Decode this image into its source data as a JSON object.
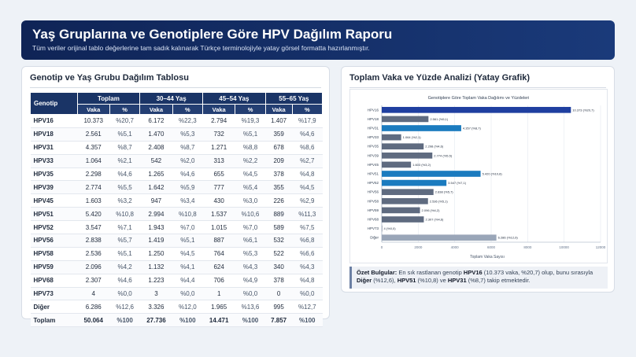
{
  "header": {
    "title": "Yaş Gruplarına ve Genotiplere Göre HPV Dağılım Raporu",
    "subtitle": "Tüm veriler orijinal tablo değerlerine tam sadık kalınarak Türkçe terminolojiyle yatay görsel formatta hazırlanmıştır."
  },
  "table_panel": {
    "title": "Genotip ve Yaş Grubu Dağılım Tablosu",
    "corner_label": "Genotip",
    "groups": [
      "Toplam",
      "30–44 Yaş",
      "45–54 Yaş",
      "55–65 Yaş"
    ],
    "sub_vaka": "Vaka",
    "sub_pct": "%",
    "rows": [
      {
        "g": "HPV16",
        "c": [
          "10.373",
          "%20,7",
          "6.172",
          "%22,3",
          "2.794",
          "%19,3",
          "1.407",
          "%17,9"
        ]
      },
      {
        "g": "HPV18",
        "c": [
          "2.561",
          "%5,1",
          "1.470",
          "%5,3",
          "732",
          "%5,1",
          "359",
          "%4,6"
        ]
      },
      {
        "g": "HPV31",
        "c": [
          "4.357",
          "%8,7",
          "2.408",
          "%8,7",
          "1.271",
          "%8,8",
          "678",
          "%8,6"
        ]
      },
      {
        "g": "HPV33",
        "c": [
          "1.064",
          "%2,1",
          "542",
          "%2,0",
          "313",
          "%2,2",
          "209",
          "%2,7"
        ]
      },
      {
        "g": "HPV35",
        "c": [
          "2.298",
          "%4,6",
          "1.265",
          "%4,6",
          "655",
          "%4,5",
          "378",
          "%4,8"
        ]
      },
      {
        "g": "HPV39",
        "c": [
          "2.774",
          "%5,5",
          "1.642",
          "%5,9",
          "777",
          "%5,4",
          "355",
          "%4,5"
        ]
      },
      {
        "g": "HPV45",
        "c": [
          "1.603",
          "%3,2",
          "947",
          "%3,4",
          "430",
          "%3,0",
          "226",
          "%2,9"
        ]
      },
      {
        "g": "HPV51",
        "c": [
          "5.420",
          "%10,8",
          "2.994",
          "%10,8",
          "1.537",
          "%10,6",
          "889",
          "%11,3"
        ]
      },
      {
        "g": "HPV52",
        "c": [
          "3.547",
          "%7,1",
          "1.943",
          "%7,0",
          "1.015",
          "%7,0",
          "589",
          "%7,5"
        ]
      },
      {
        "g": "HPV56",
        "c": [
          "2.838",
          "%5,7",
          "1.419",
          "%5,1",
          "887",
          "%6,1",
          "532",
          "%6,8"
        ]
      },
      {
        "g": "HPV58",
        "c": [
          "2.536",
          "%5,1",
          "1.250",
          "%4,5",
          "764",
          "%5,3",
          "522",
          "%6,6"
        ]
      },
      {
        "g": "HPV59",
        "c": [
          "2.096",
          "%4,2",
          "1.132",
          "%4,1",
          "624",
          "%4,3",
          "340",
          "%4,3"
        ]
      },
      {
        "g": "HPV68",
        "c": [
          "2.307",
          "%4,6",
          "1.223",
          "%4,4",
          "706",
          "%4,9",
          "378",
          "%4,8"
        ]
      },
      {
        "g": "HPV73",
        "c": [
          "4",
          "%0,0",
          "3",
          "%0,0",
          "1",
          "%0,0",
          "0",
          "%0,0"
        ]
      },
      {
        "g": "Diğer",
        "c": [
          "6.286",
          "%12,6",
          "3.326",
          "%12,0",
          "1.965",
          "%13,6",
          "995",
          "%12,7"
        ]
      }
    ],
    "total": {
      "g": "Toplam",
      "c": [
        "50.064",
        "%100",
        "27.736",
        "%100",
        "14.471",
        "%100",
        "7.857",
        "%100"
      ]
    }
  },
  "chart_panel": {
    "title": "Toplam Vaka ve Yüzde Analizi (Yatay Grafik)",
    "summary": {
      "lead": "Özet Bulgular:",
      "t1": " En sık rastlanan genotip ",
      "b1": "HPV16",
      "t2": " (10.373 vaka, %20,7) olup, bunu sırasıyla ",
      "b2": "Diğer",
      "t3": " (%12,6), ",
      "b3": "HPV51",
      "t4": " (%10,8) ve ",
      "b4": "HPV31",
      "t5": " (%8,7) takip etmektedir."
    }
  },
  "chart_data": {
    "type": "bar",
    "orientation": "horizontal",
    "title": "Genotiplere Göre Toplam Vaka Dağılımı ve Yüzdeleri",
    "xlabel": "Toplam Vaka Sayısı",
    "ylabel": "",
    "xlim": [
      0,
      12000
    ],
    "xticks": [
      0,
      2000,
      4000,
      6000,
      8000,
      10000,
      12000
    ],
    "grid": true,
    "categories": [
      "HPV16",
      "HPV18",
      "HPV31",
      "HPV33",
      "HPV35",
      "HPV39",
      "HPV45",
      "HPV51",
      "HPV52",
      "HPV56",
      "HPV58",
      "HPV59",
      "HPV68",
      "HPV73",
      "Diğer"
    ],
    "values": [
      10373,
      2561,
      4357,
      1064,
      2298,
      2774,
      1603,
      5420,
      3547,
      2838,
      2536,
      2096,
      2307,
      4,
      6286
    ],
    "labels": [
      "10.373 (%20,7)",
      "2.561 (%5,1)",
      "4.357 (%8,7)",
      "1.064 (%2,1)",
      "2.298 (%4,6)",
      "2.774 (%5,5)",
      "1.603 (%3,2)",
      "5.420 (%10,8)",
      "3.547 (%7,1)",
      "2.838 (%5,7)",
      "2.536 (%5,1)",
      "2.096 (%4,2)",
      "2.307 (%4,6)",
      "4 (%0,0)",
      "6.286 (%12,6)"
    ],
    "bar_colors": [
      "#1f3fa0",
      "#5f6b80",
      "#1b7bbf",
      "#5f6b80",
      "#5f6b80",
      "#5f6b80",
      "#5f6b80",
      "#1b7bbf",
      "#1b7bbf",
      "#5f6b80",
      "#5f6b80",
      "#5f6b80",
      "#5f6b80",
      "#5f6b80",
      "#9aa6b8"
    ]
  }
}
